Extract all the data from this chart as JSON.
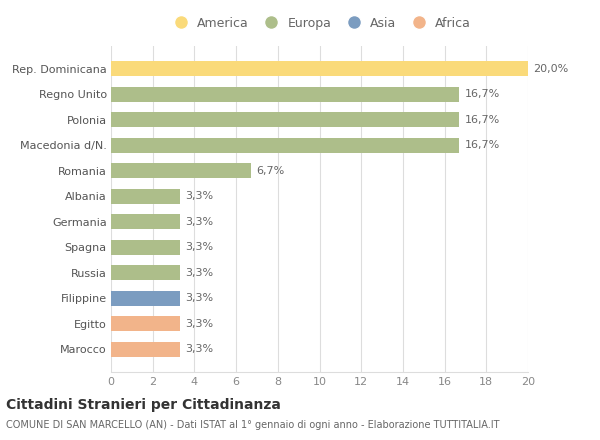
{
  "categories": [
    "Rep. Dominicana",
    "Regno Unito",
    "Polonia",
    "Macedonia d/N.",
    "Romania",
    "Albania",
    "Germania",
    "Spagna",
    "Russia",
    "Filippine",
    "Egitto",
    "Marocco"
  ],
  "values": [
    20.0,
    16.7,
    16.7,
    16.7,
    6.7,
    3.3,
    3.3,
    3.3,
    3.3,
    3.3,
    3.3,
    3.3
  ],
  "labels": [
    "20,0%",
    "16,7%",
    "16,7%",
    "16,7%",
    "6,7%",
    "3,3%",
    "3,3%",
    "3,3%",
    "3,3%",
    "3,3%",
    "3,3%",
    "3,3%"
  ],
  "colors": [
    "#FADA7A",
    "#ADBE8A",
    "#ADBE8A",
    "#ADBE8A",
    "#ADBE8A",
    "#ADBE8A",
    "#ADBE8A",
    "#ADBE8A",
    "#ADBE8A",
    "#7B9CC0",
    "#F2B48A",
    "#F2B48A"
  ],
  "continent_labels": [
    "America",
    "Europa",
    "Asia",
    "Africa"
  ],
  "continent_colors": [
    "#FADA7A",
    "#ADBE8A",
    "#7B9CC0",
    "#F2B48A"
  ],
  "title": "Cittadini Stranieri per Cittadinanza",
  "subtitle": "COMUNE DI SAN MARCELLO (AN) - Dati ISTAT al 1° gennaio di ogni anno - Elaborazione TUTTITALIA.IT",
  "xlim": [
    0,
    20
  ],
  "xticks": [
    0,
    2,
    4,
    6,
    8,
    10,
    12,
    14,
    16,
    18,
    20
  ],
  "background_color": "#FFFFFF",
  "grid_color": "#DDDDDD",
  "bar_height": 0.6,
  "title_fontsize": 10,
  "subtitle_fontsize": 7,
  "label_fontsize": 8,
  "tick_fontsize": 8,
  "legend_fontsize": 9
}
